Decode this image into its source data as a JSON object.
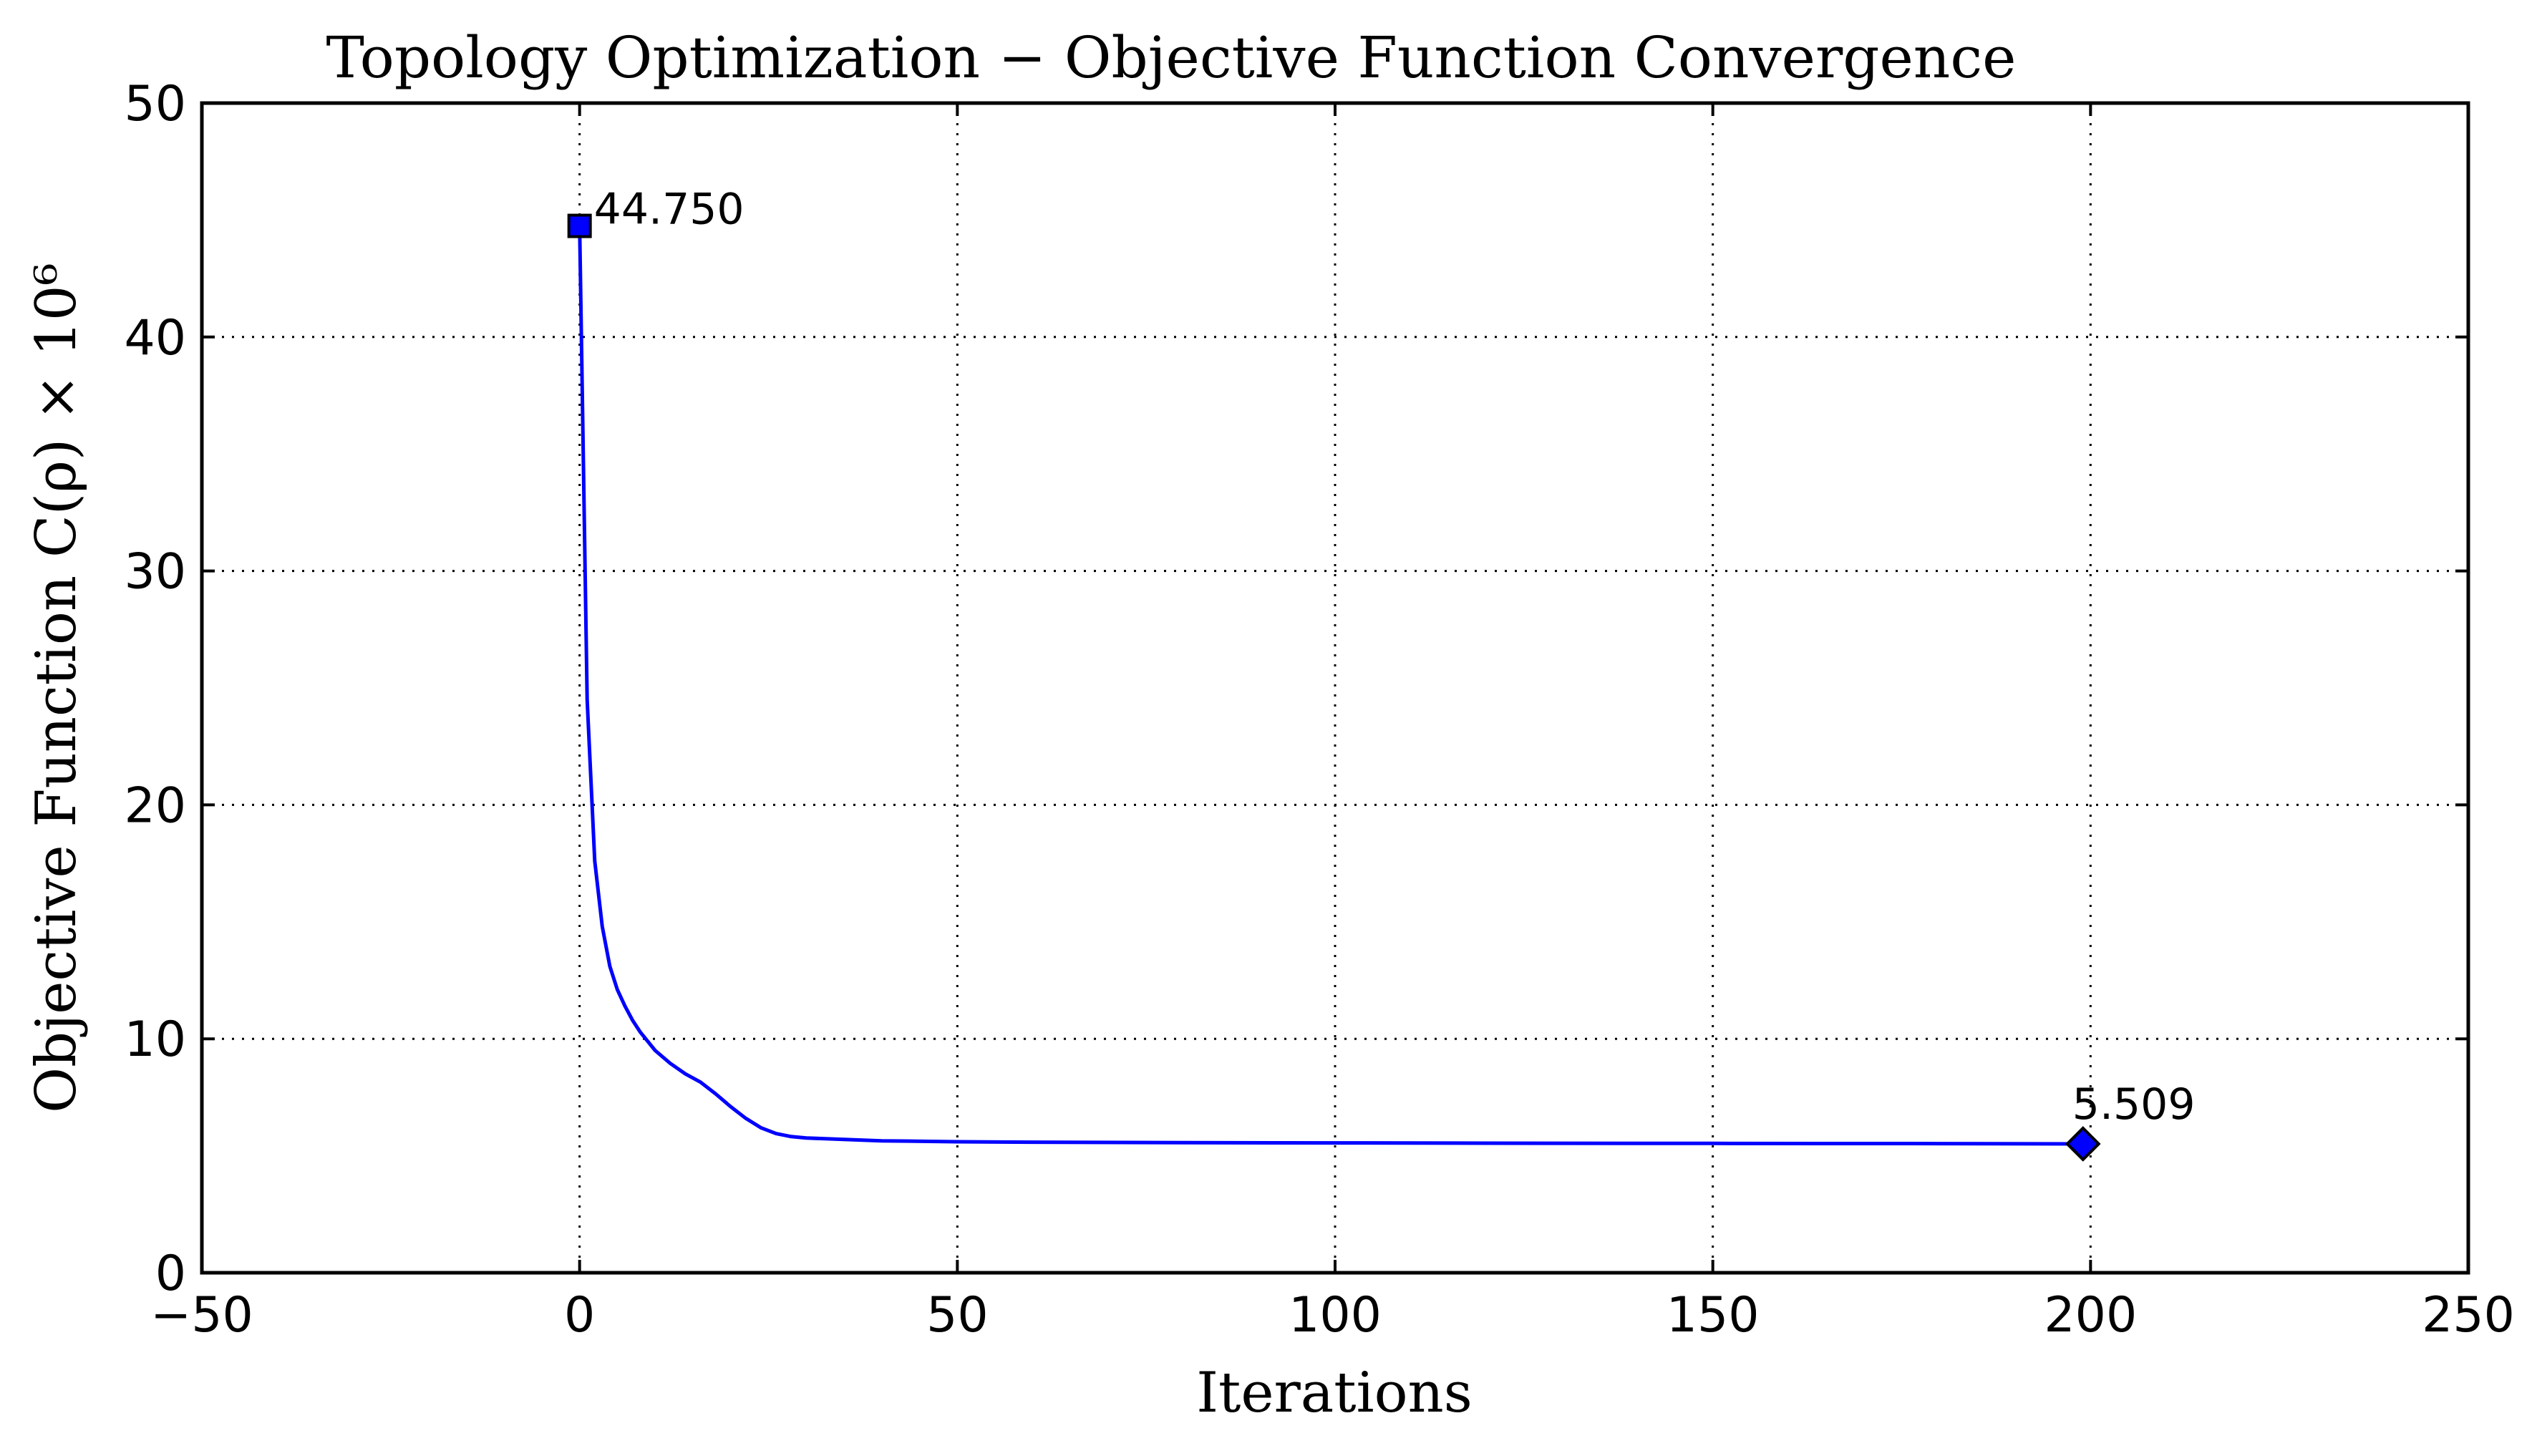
{
  "chart_data": {
    "type": "line",
    "title": "Topology Optimization − Objective Function Convergence",
    "xlabel": "Iterations",
    "ylabel": "Objective Function C(ρ) × 10⁶",
    "xlim": [
      -50,
      250
    ],
    "ylim": [
      0,
      50
    ],
    "xticks": [
      -50,
      0,
      50,
      100,
      150,
      200,
      250
    ],
    "xtick_labels": [
      "−50",
      "0",
      "50",
      "100",
      "150",
      "200",
      "250"
    ],
    "yticks": [
      0,
      10,
      20,
      30,
      40,
      50
    ],
    "ytick_labels": [
      "0",
      "10",
      "20",
      "30",
      "40",
      "50"
    ],
    "grid": true,
    "grid_style": "dotted",
    "colors": {
      "line": "#0000ff",
      "marker_fill": "#0000ff",
      "marker_edge": "#000000",
      "grid": "#000000",
      "frame": "#000000"
    },
    "series": [
      {
        "x": [
          0,
          1,
          2,
          3,
          4,
          5,
          6,
          7,
          8,
          10,
          12,
          14,
          16,
          18,
          20,
          22,
          24,
          26,
          28,
          30,
          35,
          40,
          50,
          60,
          80,
          100,
          120,
          150,
          180,
          199
        ],
        "y": [
          44.75,
          24.5,
          17.6,
          14.8,
          13.1,
          12.1,
          11.4,
          10.8,
          10.3,
          9.5,
          8.95,
          8.5,
          8.15,
          7.65,
          7.1,
          6.6,
          6.2,
          5.95,
          5.82,
          5.76,
          5.7,
          5.64,
          5.6,
          5.58,
          5.56,
          5.55,
          5.54,
          5.53,
          5.52,
          5.509
        ]
      }
    ],
    "annotations": [
      {
        "text": "44.750",
        "x": 0,
        "y": 44.75,
        "marker": "square"
      },
      {
        "text": "5.509",
        "x": 199,
        "y": 5.509,
        "marker": "diamond"
      }
    ]
  }
}
